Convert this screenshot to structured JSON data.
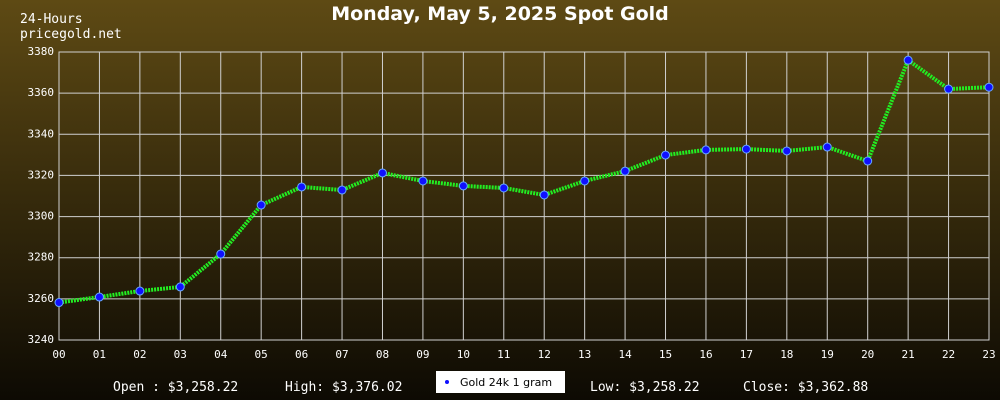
{
  "chart_data": {
    "type": "line",
    "title": "Monday, May 5, 2025 Spot Gold",
    "subtitle_lines": [
      "24-Hours",
      "pricegold.net"
    ],
    "categories": [
      "00",
      "01",
      "02",
      "03",
      "04",
      "05",
      "06",
      "07",
      "08",
      "09",
      "10",
      "11",
      "12",
      "13",
      "14",
      "15",
      "16",
      "17",
      "18",
      "19",
      "20",
      "21",
      "22",
      "23"
    ],
    "series": [
      {
        "name": "Gold 24k 1 gram",
        "color": "#22ee22",
        "marker_color": "#1010ff",
        "values": [
          3258.22,
          3260.9,
          3263.8,
          3265.8,
          3281.8,
          3305.6,
          3314.4,
          3312.9,
          3321.2,
          3317.3,
          3314.9,
          3313.9,
          3310.5,
          3317.3,
          3322.1,
          3329.9,
          3332.4,
          3332.8,
          3331.9,
          3333.8,
          3327,
          3376.02,
          3362,
          3362.88
        ]
      }
    ],
    "ylim": [
      3240,
      3380
    ],
    "yticks": [
      3240,
      3260,
      3280,
      3300,
      3320,
      3340,
      3360,
      3380
    ],
    "grid": true,
    "annotations": [
      "Open : $3,258.22",
      "High: $3,376.02",
      "Low: $3,258.22",
      "Close: $3,362.88"
    ]
  }
}
